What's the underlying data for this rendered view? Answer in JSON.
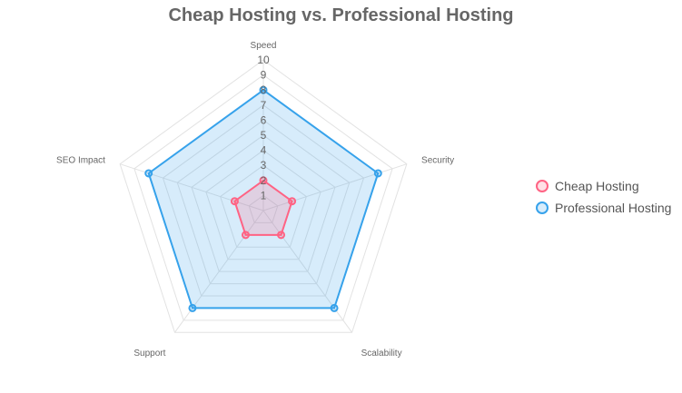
{
  "chart_data": {
    "type": "radar",
    "title": "Cheap Hosting vs. Professional Hosting",
    "categories": [
      "Speed",
      "Security",
      "Scalability",
      "Support",
      "SEO Impact"
    ],
    "rlim": [
      0,
      10
    ],
    "ticks": [
      "1",
      "2",
      "3",
      "4",
      "5",
      "6",
      "7",
      "8",
      "9",
      "10"
    ],
    "grid": true,
    "legend_position": "right",
    "series": [
      {
        "name": "Cheap Hosting",
        "values": [
          2,
          2,
          2,
          2,
          2
        ],
        "color": "#ff6384",
        "fill": "rgba(255,99,132,0.2)"
      },
      {
        "name": "Professional Hosting",
        "values": [
          8,
          8,
          8,
          8,
          8
        ],
        "color": "#36a2eb",
        "fill": "rgba(54,162,235,0.2)"
      }
    ]
  }
}
